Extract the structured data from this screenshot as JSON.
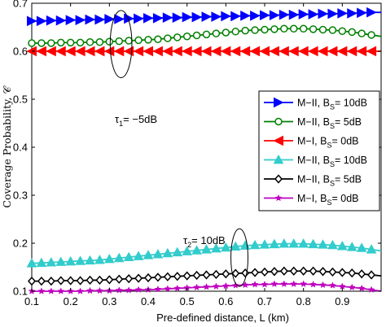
{
  "chart_data": {
    "type": "line",
    "xlabel": "Pre-defined distance,  L (km)",
    "ylabel": "Coverage Probability, 𝒞",
    "xlim": [
      0.1,
      1.0
    ],
    "ylim": [
      0.1,
      0.7
    ],
    "xticks": [
      0.1,
      0.2,
      0.3,
      0.4,
      0.5,
      0.6,
      0.7,
      0.8,
      0.9
    ],
    "xtick_labels": [
      "0.1",
      "0.2",
      "0.3",
      "0.4",
      "0.5",
      "0.6",
      "0.7",
      "0.8",
      "0.9"
    ],
    "yticks": [
      0.1,
      0.2,
      0.3,
      0.4,
      0.5,
      0.6,
      0.7
    ],
    "ytick_labels": [
      "0.1",
      "0.2",
      "0.3",
      "0.4",
      "0.5",
      "0.6",
      "0.7"
    ],
    "grid": false,
    "legend_position": "right",
    "x": [
      0.1,
      0.125,
      0.15,
      0.175,
      0.2,
      0.225,
      0.25,
      0.275,
      0.3,
      0.325,
      0.35,
      0.375,
      0.4,
      0.425,
      0.45,
      0.475,
      0.5,
      0.525,
      0.55,
      0.575,
      0.6,
      0.625,
      0.65,
      0.675,
      0.7,
      0.725,
      0.75,
      0.775,
      0.8,
      0.825,
      0.85,
      0.875,
      0.9,
      0.925,
      0.95,
      0.975,
      1.0
    ],
    "series": [
      {
        "legend_main": "M−II, B",
        "legend_sub": "S",
        "legend_tail": "= 10dB",
        "color": "#0000ff",
        "marker": "triangle-right",
        "values": [
          0.663,
          0.663,
          0.664,
          0.664,
          0.665,
          0.665,
          0.666,
          0.666,
          0.667,
          0.667,
          0.668,
          0.668,
          0.669,
          0.669,
          0.67,
          0.67,
          0.671,
          0.671,
          0.672,
          0.672,
          0.673,
          0.673,
          0.674,
          0.674,
          0.675,
          0.675,
          0.676,
          0.676,
          0.677,
          0.677,
          0.678,
          0.678,
          0.679,
          0.679,
          0.68,
          0.681,
          0.681
        ]
      },
      {
        "legend_main": "M−II, B",
        "legend_sub": "S",
        "legend_tail": "= 5dB",
        "color": "#008000",
        "marker": "circle",
        "values": [
          0.617,
          0.617,
          0.617,
          0.618,
          0.618,
          0.618,
          0.619,
          0.619,
          0.62,
          0.621,
          0.622,
          0.623,
          0.624,
          0.625,
          0.627,
          0.629,
          0.631,
          0.633,
          0.635,
          0.637,
          0.639,
          0.641,
          0.643,
          0.644,
          0.645,
          0.646,
          0.647,
          0.647,
          0.647,
          0.646,
          0.645,
          0.644,
          0.642,
          0.64,
          0.637,
          0.634,
          0.631
        ]
      },
      {
        "legend_main": "M−I, B",
        "legend_sub": "S",
        "legend_tail": "= 0dB",
        "color": "#ff0000",
        "marker": "triangle-left",
        "values": [
          0.6,
          0.6,
          0.6,
          0.6,
          0.6,
          0.6,
          0.6,
          0.6,
          0.6,
          0.6,
          0.6,
          0.6,
          0.6,
          0.6,
          0.6,
          0.6,
          0.6,
          0.6,
          0.6,
          0.6,
          0.6,
          0.6,
          0.6,
          0.6,
          0.6,
          0.6,
          0.6,
          0.6,
          0.6,
          0.6,
          0.6,
          0.6,
          0.6,
          0.6,
          0.6,
          0.6,
          0.6
        ]
      },
      {
        "legend_main": "M−II, B",
        "legend_sub": "S",
        "legend_tail": "= 10dB",
        "color": "#33cccc",
        "marker": "triangle-up",
        "values": [
          0.158,
          0.159,
          0.16,
          0.161,
          0.162,
          0.163,
          0.164,
          0.165,
          0.167,
          0.169,
          0.171,
          0.173,
          0.175,
          0.177,
          0.179,
          0.181,
          0.183,
          0.185,
          0.187,
          0.189,
          0.191,
          0.193,
          0.195,
          0.196,
          0.197,
          0.198,
          0.199,
          0.199,
          0.199,
          0.198,
          0.197,
          0.196,
          0.194,
          0.192,
          0.19,
          0.187,
          0.184
        ]
      },
      {
        "legend_main": "M−II, B",
        "legend_sub": "S",
        "legend_tail": "= 5dB",
        "color": "#000000",
        "marker": "diamond",
        "values": [
          0.121,
          0.121,
          0.121,
          0.122,
          0.122,
          0.122,
          0.123,
          0.123,
          0.124,
          0.125,
          0.126,
          0.127,
          0.128,
          0.129,
          0.13,
          0.131,
          0.132,
          0.133,
          0.134,
          0.135,
          0.136,
          0.137,
          0.138,
          0.139,
          0.14,
          0.141,
          0.142,
          0.142,
          0.142,
          0.142,
          0.141,
          0.14,
          0.139,
          0.138,
          0.136,
          0.134,
          0.132
        ]
      },
      {
        "legend_main": "M−I, B",
        "legend_sub": "S",
        "legend_tail": "= 0dB",
        "color": "#bf00bf",
        "marker": "star",
        "values": [
          0.1,
          0.1,
          0.1,
          0.1,
          0.1,
          0.1,
          0.101,
          0.101,
          0.101,
          0.102,
          0.102,
          0.103,
          0.103,
          0.104,
          0.105,
          0.106,
          0.107,
          0.108,
          0.109,
          0.11,
          0.111,
          0.112,
          0.113,
          0.114,
          0.114,
          0.115,
          0.115,
          0.115,
          0.115,
          0.114,
          0.113,
          0.112,
          0.11,
          0.108,
          0.106,
          0.103,
          0.1
        ]
      }
    ],
    "annotations": [
      {
        "main": "τ",
        "sub": "1",
        "tail": "= −5dB",
        "ellipse_center": [
          0.33,
          0.615
        ],
        "ellipse_r": [
          0.028,
          0.07
        ]
      },
      {
        "main": "τ",
        "sub": "2",
        "tail": "= 10dB",
        "ellipse_center": [
          0.635,
          0.17
        ],
        "ellipse_r": [
          0.022,
          0.06
        ]
      }
    ]
  }
}
